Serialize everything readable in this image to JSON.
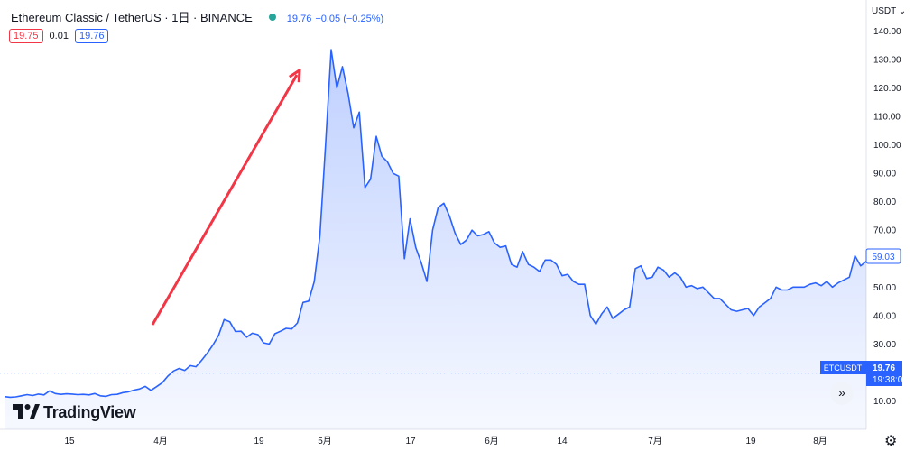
{
  "header": {
    "symbol_title": "Ethereum Classic / TetherUS · 1日 · BINANCE",
    "last_price": "19.76",
    "change": "−0.05 (−0.25%)"
  },
  "quote": {
    "bid": "19.75",
    "spread": "0.01",
    "ask": "19.76"
  },
  "axis": {
    "currency": "USDT"
  },
  "price_labels": {
    "hover_price": "59.03",
    "symbol_tag": "ETCUSDT",
    "current_price": "19.76",
    "countdown": "19:38:04"
  },
  "logo_text": "TradingView",
  "colors": {
    "line": "#2962ff",
    "area_top": "#2962ff",
    "annotation": "#f23645",
    "sell": "#f23645",
    "buy": "#2962ff"
  },
  "chart_data": {
    "type": "area",
    "series": [
      {
        "values": [
          11.5,
          11.3,
          11.4,
          11.8,
          12.2,
          11.9,
          12.4,
          12.1,
          13.5,
          12.6,
          12.3,
          12.5,
          12.4,
          12.2,
          12.3,
          12.1,
          12.6,
          11.8,
          11.6,
          12.2,
          12.3,
          12.9,
          13.2,
          13.8,
          14.2,
          15.1,
          13.7,
          15.0,
          16.4,
          18.7,
          20.5,
          21.4,
          20.7,
          22.4,
          22.0,
          24.3,
          26.8,
          29.6,
          33.0,
          38.6,
          37.8,
          34.4,
          34.5,
          32.4,
          33.8,
          33.3,
          30.4,
          30.0,
          33.6,
          34.5,
          35.5,
          35.3,
          37.4,
          44.6,
          45.1,
          52.0,
          68.0,
          100.0,
          133.5,
          120.0,
          127.5,
          118.0,
          106.0,
          111.5,
          85.0,
          88.0,
          103.0,
          96.0,
          94.0,
          90.0,
          89.0,
          60.0,
          74.0,
          64.0,
          58.5,
          52.0,
          70.0,
          78.0,
          79.5,
          75.0,
          69.0,
          65.0,
          66.5,
          70.0,
          68.0,
          68.5,
          69.5,
          65.5,
          64.0,
          64.5,
          58.0,
          57.0,
          62.5,
          58.0,
          57.0,
          55.5,
          59.5,
          59.5,
          58.0,
          54.0,
          54.5,
          52.0,
          51.0,
          51.0,
          40.0,
          37.0,
          40.5,
          43.0,
          39.0,
          40.5,
          42.0,
          43.0,
          56.5,
          57.5,
          53.0,
          53.5,
          57.0,
          56.0,
          53.5,
          55.0,
          53.5,
          50.0,
          50.5,
          49.5,
          50.0,
          48.0,
          46.0,
          46.0,
          44.0,
          42.0,
          41.5,
          42.0,
          42.5,
          40.0,
          43.0,
          44.5,
          46.0,
          50.0,
          49.0,
          49.0,
          50.0,
          50.0,
          50.0,
          51.0,
          51.5,
          50.5,
          52.0,
          50.0,
          51.5,
          52.5,
          53.5,
          61.0,
          57.5,
          59.03
        ]
      }
    ],
    "y_ticks": [
      "10.00",
      "20.00",
      "30.00",
      "40.00",
      "50.00",
      "60.00",
      "70.00",
      "80.00",
      "90.00",
      "100.00",
      "110.00",
      "120.00",
      "130.00",
      "140.00"
    ],
    "ylim": [
      0,
      143
    ],
    "x_labels": [
      "15",
      "4月",
      "19",
      "5月",
      "17",
      "6月",
      "14",
      "7月",
      "19",
      "8月"
    ],
    "current_price": 19.76
  }
}
